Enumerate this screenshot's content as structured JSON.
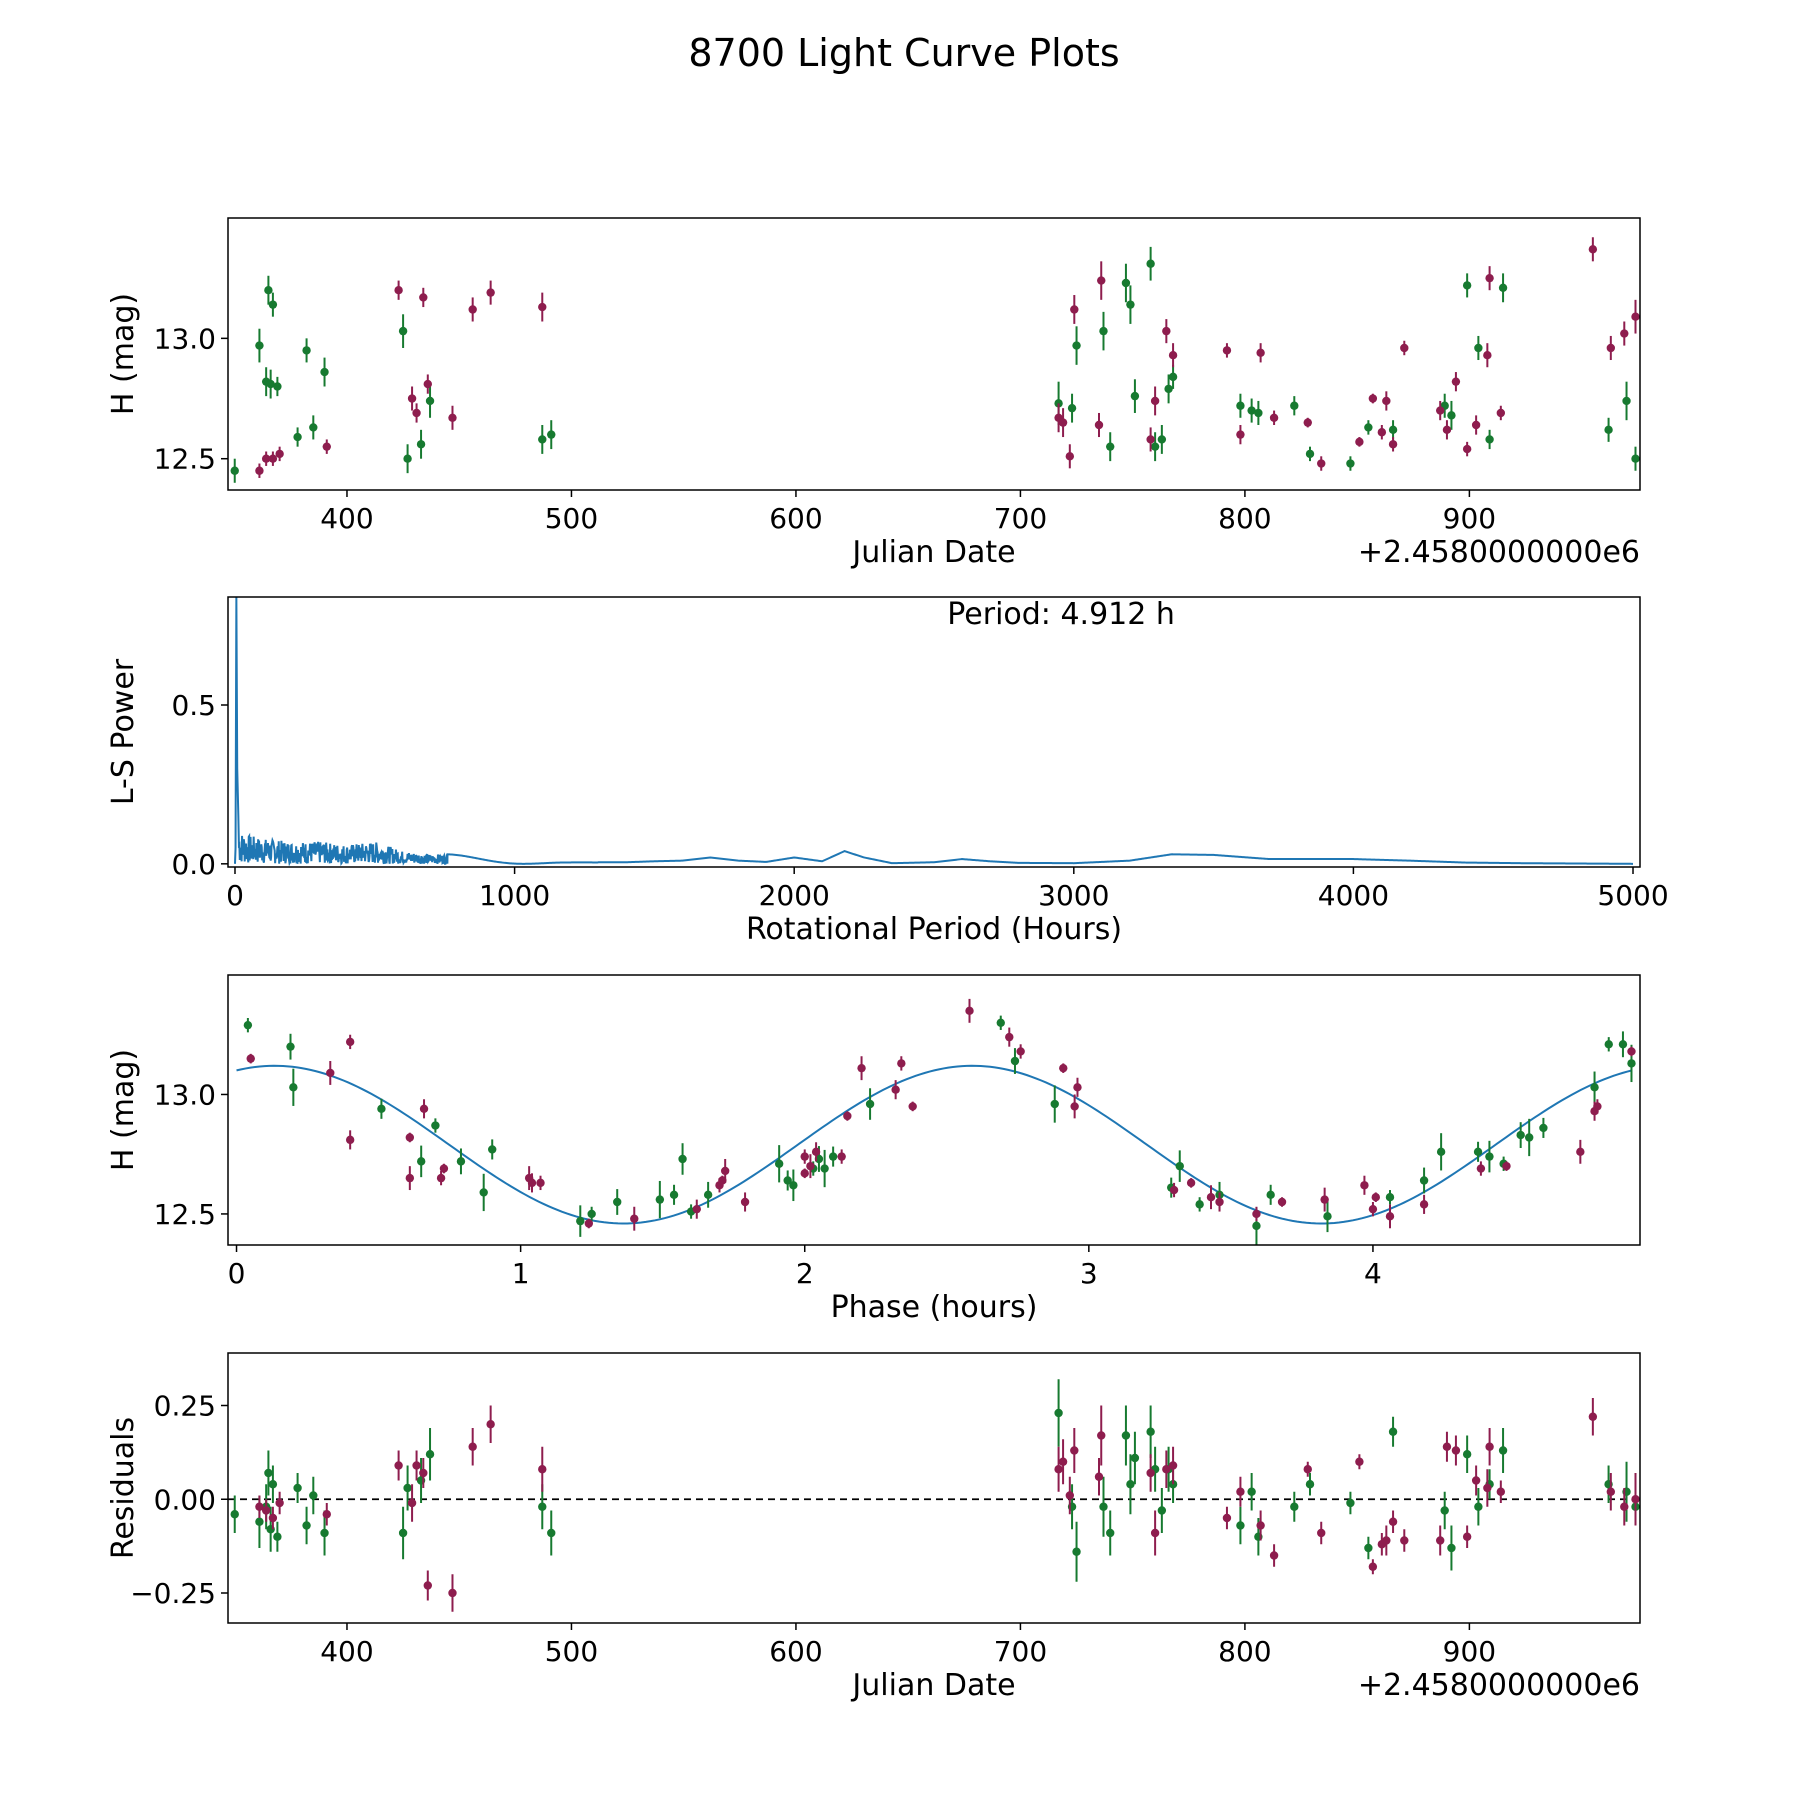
{
  "figure_title": "8700 Light Curve Plots",
  "colors": {
    "green": "#177a30",
    "magenta": "#8e1d4e",
    "line": "#1f77b4",
    "axis": "#000000",
    "zero_line": "#000000"
  },
  "chart_data": [
    {
      "type": "scatter",
      "name": "light-curve",
      "title": "",
      "xlabel": "Julian Date",
      "ylabel": "H (mag)",
      "x_offset_label": "+2.4580000000e6",
      "xlim": [
        347,
        976
      ],
      "ylim": [
        12.37,
        13.5
      ],
      "xticks": [
        400,
        500,
        600,
        700,
        800,
        900
      ],
      "xtick_labels": [
        "400",
        "500",
        "600",
        "700",
        "800",
        "900"
      ],
      "yticks": [
        12.5,
        13.0
      ],
      "ytick_labels": [
        "12.5",
        "13.0"
      ],
      "series": [
        {
          "name": "green",
          "x": [
            350,
            361,
            364,
            365,
            366,
            367,
            369,
            378,
            382,
            385,
            390,
            425,
            427,
            433,
            437,
            487,
            491,
            717,
            723,
            725,
            737,
            740,
            747,
            749,
            751,
            758,
            760,
            763,
            766,
            768,
            798,
            803,
            806,
            822,
            829,
            847,
            855,
            866,
            889,
            892,
            899,
            904,
            909,
            915,
            962,
            970,
            974
          ],
          "y": [
            12.45,
            12.97,
            12.82,
            13.2,
            12.81,
            13.14,
            12.8,
            12.59,
            12.95,
            12.63,
            12.86,
            13.03,
            12.5,
            12.56,
            12.74,
            12.58,
            12.6,
            12.73,
            12.71,
            12.97,
            13.03,
            12.55,
            13.23,
            13.14,
            12.76,
            13.31,
            12.55,
            12.58,
            12.79,
            12.84,
            12.72,
            12.7,
            12.69,
            12.72,
            12.52,
            12.48,
            12.63,
            12.62,
            12.72,
            12.68,
            13.22,
            12.96,
            12.58,
            13.21,
            12.62,
            12.74,
            12.5
          ],
          "err": [
            0.05,
            0.07,
            0.06,
            0.06,
            0.06,
            0.05,
            0.04,
            0.04,
            0.05,
            0.05,
            0.06,
            0.07,
            0.06,
            0.06,
            0.07,
            0.06,
            0.06,
            0.09,
            0.06,
            0.08,
            0.08,
            0.06,
            0.08,
            0.08,
            0.07,
            0.07,
            0.06,
            0.06,
            0.06,
            0.05,
            0.05,
            0.05,
            0.05,
            0.04,
            0.03,
            0.03,
            0.03,
            0.04,
            0.05,
            0.06,
            0.05,
            0.05,
            0.04,
            0.06,
            0.05,
            0.08,
            0.05
          ]
        },
        {
          "name": "magenta",
          "x": [
            361,
            364,
            367,
            370,
            391,
            423,
            429,
            431,
            434,
            436,
            447,
            456,
            464,
            487,
            717,
            719,
            722,
            724,
            735,
            736,
            758,
            760,
            765,
            768,
            792,
            798,
            807,
            813,
            828,
            834,
            851,
            857,
            861,
            863,
            866,
            871,
            887,
            890,
            894,
            899,
            903,
            908,
            909,
            914,
            955,
            963,
            969,
            974
          ],
          "y": [
            12.45,
            12.5,
            12.5,
            12.52,
            12.55,
            13.2,
            12.75,
            12.69,
            13.17,
            12.81,
            12.67,
            13.12,
            13.19,
            13.13,
            12.67,
            12.65,
            12.51,
            13.12,
            12.64,
            13.24,
            12.58,
            12.74,
            13.03,
            12.93,
            12.95,
            12.6,
            12.94,
            12.67,
            12.65,
            12.48,
            12.57,
            12.75,
            12.61,
            12.74,
            12.56,
            12.96,
            12.7,
            12.62,
            12.82,
            12.54,
            12.64,
            12.93,
            13.25,
            12.69,
            13.37,
            12.96,
            13.02,
            13.09
          ]
        }
      ],
      "magenta_err": [
        0.03,
        0.03,
        0.03,
        0.03,
        0.03,
        0.04,
        0.05,
        0.04,
        0.04,
        0.04,
        0.05,
        0.05,
        0.05,
        0.06,
        0.06,
        0.06,
        0.05,
        0.06,
        0.05,
        0.08,
        0.05,
        0.06,
        0.05,
        0.05,
        0.03,
        0.04,
        0.04,
        0.03,
        0.02,
        0.03,
        0.02,
        0.02,
        0.03,
        0.04,
        0.03,
        0.03,
        0.04,
        0.04,
        0.04,
        0.03,
        0.04,
        0.05,
        0.05,
        0.03,
        0.05,
        0.05,
        0.05,
        0.07
      ]
    },
    {
      "type": "line",
      "name": "periodogram",
      "title": "",
      "annotation": "Period: 4.912 h",
      "xlabel": "Rotational Period (Hours)",
      "ylabel": "L-S Power",
      "xlim": [
        -25,
        5025
      ],
      "ylim": [
        -0.01,
        0.84
      ],
      "xticks": [
        0,
        1000,
        2000,
        3000,
        4000,
        5000
      ],
      "xtick_labels": [
        "0",
        "1000",
        "2000",
        "3000",
        "4000",
        "5000"
      ],
      "yticks": [
        0.0,
        0.5
      ],
      "ytick_labels": [
        "0.0",
        "0.5"
      ],
      "peak_period": 4.912,
      "peak_power": 0.84,
      "x": [
        0,
        2,
        4,
        5,
        7,
        10,
        15,
        20,
        30,
        50,
        100,
        200,
        300,
        400,
        500,
        600,
        700,
        800,
        900,
        1000,
        1100,
        1200,
        1300,
        1400,
        1500,
        1600,
        1700,
        1800,
        1900,
        2000,
        2100,
        2180,
        2250,
        2350,
        2500,
        2600,
        2700,
        2800,
        3000,
        3200,
        3350,
        3500,
        3700,
        4000,
        4200,
        4400,
        4600,
        4800,
        5000
      ],
      "y": [
        0.0,
        0.05,
        0.2,
        0.84,
        0.3,
        0.16,
        0.11,
        0.1,
        0.1,
        0.09,
        0.08,
        0.07,
        0.07,
        0.06,
        0.07,
        0.04,
        0.03,
        0.03,
        0.03,
        0.03,
        0.02,
        0.01,
        0.005,
        0.005,
        0.008,
        0.01,
        0.02,
        0.01,
        0.006,
        0.02,
        0.008,
        0.04,
        0.02,
        0.002,
        0.005,
        0.015,
        0.008,
        0.003,
        0.002,
        0.01,
        0.03,
        0.028,
        0.015,
        0.015,
        0.01,
        0.004,
        0.002,
        0.001,
        0.0
      ]
    },
    {
      "type": "scatter",
      "name": "phase-folded",
      "title": "",
      "xlabel": "Phase (hours)",
      "ylabel": "H (mag)",
      "xlim": [
        -0.03,
        4.94
      ],
      "ylim": [
        12.37,
        13.5
      ],
      "xticks": [
        0,
        1,
        2,
        3,
        4
      ],
      "xtick_labels": [
        "0",
        "1",
        "2",
        "3",
        "4"
      ],
      "yticks": [
        12.5,
        13.0
      ],
      "ytick_labels": [
        "12.5",
        "13.0"
      ],
      "fit": {
        "period_h": 4.912,
        "mean_mag": 12.79,
        "amplitude": 0.33,
        "peak_phase_h": 2.59
      },
      "series": [
        {
          "name": "green",
          "x": [
            0.04,
            0.19,
            0.2,
            0.51,
            0.65,
            0.7,
            0.79,
            0.87,
            0.9,
            1.21,
            1.25,
            1.34,
            1.49,
            1.54,
            1.57,
            1.6,
            1.66,
            1.91,
            1.94,
            1.96,
            2.03,
            2.05,
            2.07,
            2.1,
            2.23,
            2.69,
            2.74,
            2.88,
            3.29,
            3.32,
            3.39,
            3.46,
            3.59,
            3.64,
            3.84,
            4.06,
            4.18,
            4.24,
            4.37,
            4.41,
            4.46,
            4.52,
            4.55,
            4.6,
            4.78,
            4.83,
            4.88,
            4.91
          ],
          "y": [
            13.29,
            13.2,
            13.03,
            12.94,
            12.72,
            12.87,
            12.72,
            12.59,
            12.77,
            12.47,
            12.5,
            12.55,
            12.56,
            12.58,
            12.73,
            12.51,
            12.58,
            12.71,
            12.64,
            12.62,
            12.69,
            12.73,
            12.69,
            12.74,
            12.96,
            13.3,
            13.14,
            12.96,
            12.61,
            12.7,
            12.54,
            12.58,
            12.45,
            12.58,
            12.49,
            12.57,
            12.64,
            12.76,
            12.76,
            12.74,
            12.71,
            12.83,
            12.82,
            12.86,
            13.03,
            13.21,
            13.21,
            13.13
          ]
        },
        {
          "name": "magenta",
          "x": [
            0.05,
            0.33,
            0.4,
            0.4,
            0.61,
            0.61,
            0.66,
            0.72,
            0.73,
            1.03,
            1.04,
            1.07,
            1.24,
            1.4,
            1.62,
            1.7,
            1.71,
            1.72,
            1.79,
            2.0,
            2.0,
            2.02,
            2.04,
            2.13,
            2.15,
            2.2,
            2.32,
            2.34,
            2.38,
            2.58,
            2.72,
            2.76,
            2.91,
            2.95,
            2.96,
            3.3,
            3.36,
            3.43,
            3.46,
            3.59,
            3.68,
            3.83,
            3.97,
            4.0,
            4.01,
            4.06,
            4.18,
            4.38,
            4.47,
            4.73,
            4.78,
            4.79,
            4.91
          ],
          "y": [
            13.15,
            13.09,
            12.81,
            13.22,
            12.82,
            12.65,
            12.94,
            12.65,
            12.69,
            12.65,
            12.63,
            12.63,
            12.46,
            12.48,
            12.52,
            12.62,
            12.64,
            12.68,
            12.55,
            12.74,
            12.67,
            12.7,
            12.76,
            12.74,
            12.91,
            13.11,
            13.02,
            13.13,
            12.95,
            13.35,
            13.24,
            13.18,
            13.11,
            12.95,
            13.03,
            12.6,
            12.63,
            12.57,
            12.55,
            12.5,
            12.55,
            12.56,
            12.62,
            12.52,
            12.57,
            12.49,
            12.54,
            12.69,
            12.7,
            12.76,
            12.93,
            12.95,
            13.18
          ]
        }
      ]
    },
    {
      "type": "scatter",
      "name": "residuals",
      "title": "",
      "xlabel": "Julian Date",
      "ylabel": "Residuals",
      "x_offset_label": "+2.4580000000e6",
      "xlim": [
        347,
        976
      ],
      "ylim": [
        -0.33,
        0.39
      ],
      "xticks": [
        400,
        500,
        600,
        700,
        800,
        900
      ],
      "xtick_labels": [
        "400",
        "500",
        "600",
        "700",
        "800",
        "900"
      ],
      "yticks": [
        -0.25,
        0.0,
        0.25
      ],
      "ytick_labels": [
        "−0.25",
        "0.00",
        "0.25"
      ],
      "zero_line": 0.0,
      "series": [
        {
          "name": "green",
          "x": [
            350,
            361,
            364,
            365,
            366,
            367,
            369,
            378,
            382,
            385,
            390,
            425,
            427,
            433,
            437,
            487,
            491,
            717,
            723,
            725,
            737,
            740,
            747,
            749,
            751,
            758,
            760,
            763,
            766,
            768,
            798,
            803,
            806,
            822,
            829,
            847,
            855,
            866,
            889,
            892,
            899,
            904,
            909,
            915,
            962,
            970,
            974
          ],
          "y": [
            -0.04,
            -0.06,
            -0.02,
            0.07,
            -0.08,
            0.04,
            -0.1,
            0.03,
            -0.07,
            0.01,
            -0.09,
            -0.09,
            0.03,
            0.05,
            0.12,
            -0.02,
            -0.09,
            0.23,
            -0.02,
            -0.14,
            -0.02,
            -0.09,
            0.17,
            0.04,
            0.11,
            0.18,
            0.08,
            -0.03,
            0.08,
            0.04,
            -0.07,
            0.02,
            -0.1,
            -0.02,
            0.04,
            -0.01,
            -0.13,
            0.18,
            -0.03,
            -0.13,
            0.12,
            -0.02,
            0.04,
            0.13,
            0.04,
            0.02,
            -0.02
          ],
          "err": [
            0.05,
            0.07,
            0.06,
            0.06,
            0.06,
            0.05,
            0.04,
            0.04,
            0.05,
            0.05,
            0.06,
            0.07,
            0.06,
            0.06,
            0.07,
            0.06,
            0.06,
            0.09,
            0.06,
            0.08,
            0.08,
            0.06,
            0.08,
            0.08,
            0.07,
            0.07,
            0.06,
            0.06,
            0.06,
            0.05,
            0.05,
            0.05,
            0.05,
            0.04,
            0.03,
            0.03,
            0.03,
            0.04,
            0.05,
            0.06,
            0.05,
            0.05,
            0.04,
            0.06,
            0.05,
            0.08,
            0.05
          ]
        },
        {
          "name": "magenta",
          "x": [
            361,
            364,
            367,
            370,
            391,
            423,
            429,
            431,
            434,
            436,
            447,
            456,
            464,
            487,
            717,
            719,
            722,
            724,
            735,
            736,
            758,
            760,
            765,
            768,
            792,
            798,
            807,
            813,
            828,
            834,
            851,
            857,
            861,
            863,
            866,
            871,
            887,
            890,
            894,
            899,
            903,
            908,
            909,
            914,
            955,
            963,
            969,
            974
          ],
          "y": [
            -0.02,
            -0.03,
            -0.05,
            -0.01,
            -0.04,
            0.09,
            -0.01,
            0.09,
            0.07,
            -0.23,
            -0.25,
            0.14,
            0.2,
            0.08,
            0.08,
            0.1,
            0.01,
            0.13,
            0.06,
            0.17,
            0.07,
            -0.09,
            0.08,
            0.09,
            -0.05,
            0.02,
            -0.07,
            -0.15,
            0.08,
            -0.09,
            0.1,
            -0.18,
            -0.12,
            -0.11,
            -0.06,
            -0.11,
            -0.11,
            0.14,
            0.13,
            -0.1,
            0.05,
            0.03,
            0.14,
            0.02,
            0.22,
            0.02,
            -0.02,
            0.0
          ]
        }
      ],
      "magenta_err": [
        0.03,
        0.03,
        0.03,
        0.03,
        0.03,
        0.04,
        0.05,
        0.04,
        0.04,
        0.04,
        0.05,
        0.05,
        0.05,
        0.06,
        0.06,
        0.06,
        0.05,
        0.06,
        0.05,
        0.08,
        0.05,
        0.06,
        0.05,
        0.05,
        0.03,
        0.04,
        0.04,
        0.03,
        0.02,
        0.03,
        0.02,
        0.02,
        0.03,
        0.04,
        0.03,
        0.03,
        0.04,
        0.04,
        0.04,
        0.03,
        0.04,
        0.05,
        0.05,
        0.03,
        0.05,
        0.05,
        0.05,
        0.07
      ]
    }
  ]
}
